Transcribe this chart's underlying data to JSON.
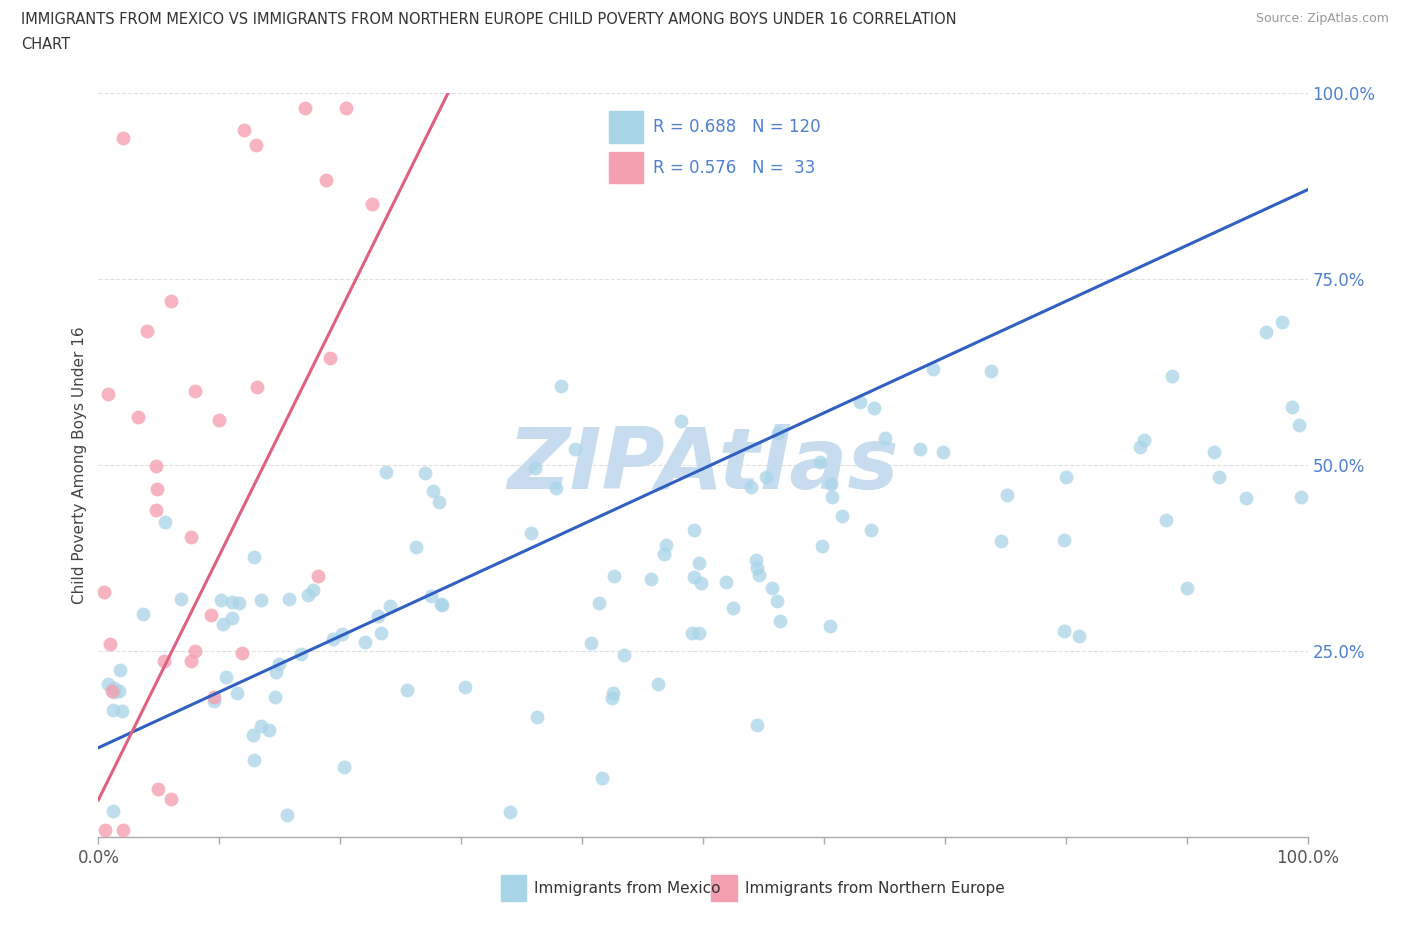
{
  "title_line1": "IMMIGRANTS FROM MEXICO VS IMMIGRANTS FROM NORTHERN EUROPE CHILD POVERTY AMONG BOYS UNDER 16 CORRELATION",
  "title_line2": "CHART",
  "source": "Source: ZipAtlas.com",
  "ylabel": "Child Poverty Among Boys Under 16",
  "watermark": "ZIPAtlas",
  "R_mexico": "0.688",
  "N_mexico": "120",
  "R_ne": "0.576",
  "N_ne": " 33",
  "color_mexico": "#A8D4E8",
  "color_ne": "#F5A0B0",
  "line_color_mexico": "#3060C0",
  "line_color_ne": "#E06080",
  "ytick_color": "#5080D0",
  "title_color": "#333333",
  "source_color": "#999999",
  "watermark_color": "#C8DCF0",
  "legend_box_color": "#DDDDDD",
  "bottom_legend_text_color": "#333333"
}
